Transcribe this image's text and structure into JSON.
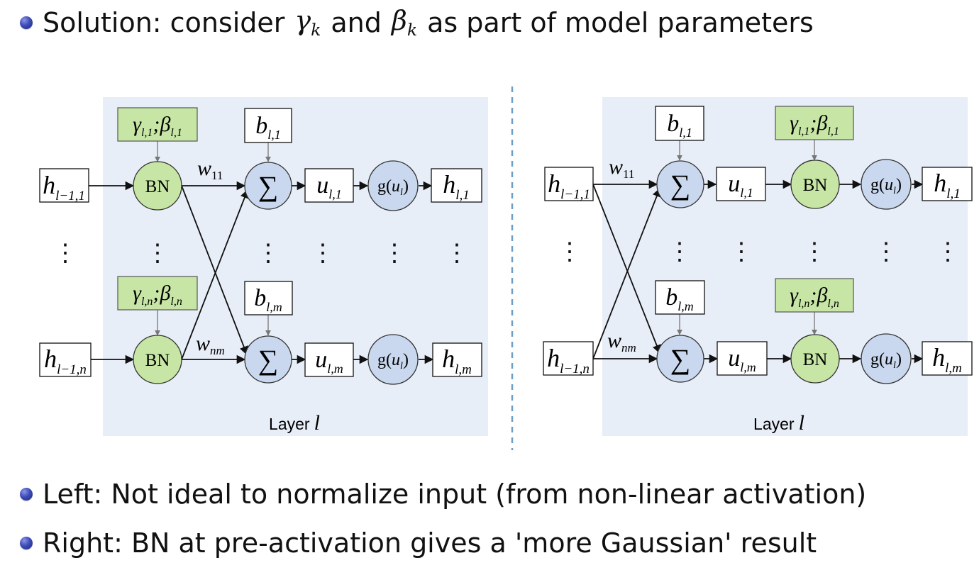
{
  "bullets": {
    "top": {
      "prefix": "Solution: consider",
      "gamma_sym": "γ",
      "gamma_sub": "k",
      "and_text": "and",
      "beta_sym": "β",
      "beta_sub": "k",
      "suffix": "as part of model parameters"
    },
    "bottom": [
      "Left: Not ideal to normalize input (from non-linear activation)",
      "Right: BN at pre-activation gives a 'more Gaussian' result"
    ]
  },
  "diagram": {
    "panel_fill": "#e8eef7",
    "green_fill": "#c7e6a5",
    "blue_fill": "#c9d8ee",
    "divider_color": "#6d9ec8",
    "labels": {
      "bn": "BN",
      "sum": "∑",
      "act_func": "g",
      "act_arg": "u",
      "act_arg_sub": "l",
      "h_in_1_base": "h",
      "h_in_1_sub": "l−1,1",
      "h_in_n_base": "h",
      "h_in_n_sub": "l−1,n",
      "h_out_1_base": "h",
      "h_out_1_sub": "l,1",
      "h_out_m_base": "h",
      "h_out_m_sub": "l,m",
      "u_1_base": "u",
      "u_1_sub": "l,1",
      "u_m_base": "u",
      "u_m_sub": "l,m",
      "b_1_base": "b",
      "b_1_sub": "l,1",
      "b_m_base": "b",
      "b_m_sub": "l,m",
      "gb_1_gamma": "γ",
      "gb_1_gamma_sub": "l,1",
      "gb_1_beta": "β",
      "gb_1_beta_sub": "l,1",
      "gb_n_gamma": "γ",
      "gb_n_gamma_sub": "l,n",
      "gb_n_beta": "β",
      "gb_n_beta_sub": "l,n",
      "w_11_base": "w",
      "w_11_sub": "11",
      "w_nm_base": "w",
      "w_nm_sub": "nm",
      "layer_word": "Layer",
      "layer_var": "l",
      "vdots": "⋮"
    }
  }
}
